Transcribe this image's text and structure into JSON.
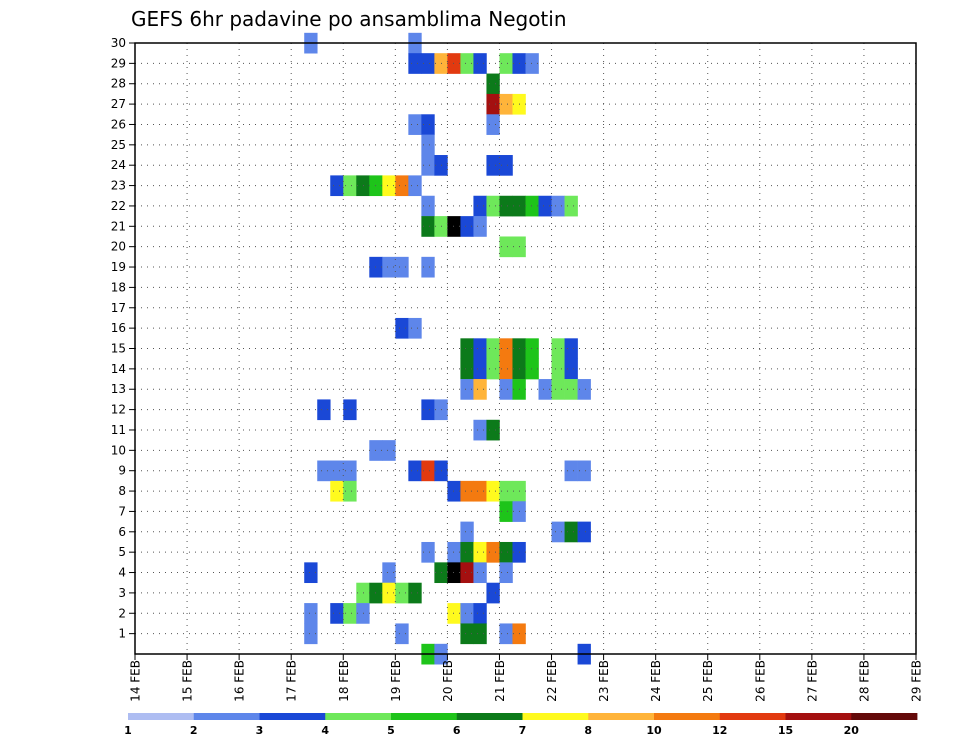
{
  "chart_data": {
    "type": "heatmap",
    "title": "GEFS 6hr padavine po ansamblima Negotin",
    "xlabel": "",
    "ylabel": "",
    "x_tick_labels": [
      "14 FEB",
      "15 FEB",
      "16 FEB",
      "17 FEB",
      "18 FEB",
      "19 FEB",
      "20 FEB",
      "21 FEB",
      "22 FEB",
      "23 FEB",
      "24 FEB",
      "25 FEB",
      "26 FEB",
      "27 FEB",
      "28 FEB",
      "29 FEB"
    ],
    "xlim": [
      0,
      60
    ],
    "y_tick_labels": [
      "1",
      "2",
      "3",
      "4",
      "5",
      "6",
      "7",
      "8",
      "9",
      "10",
      "11",
      "12",
      "13",
      "14",
      "15",
      "16",
      "17",
      "18",
      "19",
      "20",
      "21",
      "22",
      "23",
      "24",
      "25",
      "26",
      "27",
      "28",
      "29",
      "30"
    ],
    "ylim": [
      0,
      30
    ],
    "grid": true,
    "legend": "colorbar-bottom",
    "colorbar": {
      "labels": [
        "1",
        "2",
        "3",
        "4",
        "5",
        "6",
        "7",
        "8",
        "10",
        "12",
        "15",
        "20"
      ],
      "colors": [
        "#aebdf2",
        "#5e86ea",
        "#1a48d6",
        "#6ee85a",
        "#1ec41a",
        "#0c7a1a",
        "#fffa1e",
        "#ffb43a",
        "#f47a10",
        "#e23a10",
        "#a41010",
        "#640a0a"
      ]
    },
    "cells": [
      [
        30,
        13,
        1
      ],
      [
        30,
        21,
        1
      ],
      [
        29,
        21,
        2
      ],
      [
        29,
        22,
        2
      ],
      [
        29,
        23,
        7
      ],
      [
        29,
        24,
        9
      ],
      [
        29,
        25,
        3
      ],
      [
        29,
        26,
        2
      ],
      [
        29,
        28,
        3
      ],
      [
        29,
        29,
        2
      ],
      [
        29,
        30,
        1
      ],
      [
        28,
        27,
        5
      ],
      [
        27,
        27,
        10
      ],
      [
        27,
        28,
        7
      ],
      [
        27,
        29,
        6
      ],
      [
        26,
        21,
        1
      ],
      [
        26,
        22,
        2
      ],
      [
        26,
        27,
        1
      ],
      [
        25,
        22,
        1
      ],
      [
        24,
        22,
        1
      ],
      [
        24,
        23,
        2
      ],
      [
        24,
        27,
        2
      ],
      [
        24,
        28,
        2
      ],
      [
        23,
        15,
        2
      ],
      [
        23,
        16,
        3
      ],
      [
        23,
        17,
        5
      ],
      [
        23,
        18,
        4
      ],
      [
        23,
        19,
        6
      ],
      [
        23,
        20,
        8
      ],
      [
        23,
        21,
        1
      ],
      [
        22,
        22,
        1
      ],
      [
        22,
        26,
        2
      ],
      [
        22,
        27,
        3
      ],
      [
        22,
        28,
        5
      ],
      [
        22,
        29,
        5
      ],
      [
        22,
        30,
        4
      ],
      [
        22,
        31,
        2
      ],
      [
        22,
        32,
        1
      ],
      [
        22,
        33,
        3
      ],
      [
        21,
        22,
        5
      ],
      [
        21,
        23,
        3
      ],
      [
        21,
        24,
        12
      ],
      [
        21,
        25,
        2
      ],
      [
        21,
        26,
        1
      ],
      [
        20,
        28,
        3
      ],
      [
        20,
        29,
        3
      ],
      [
        19,
        18,
        2
      ],
      [
        19,
        19,
        1
      ],
      [
        19,
        20,
        1
      ],
      [
        19,
        22,
        1
      ],
      [
        16,
        20,
        2
      ],
      [
        16,
        21,
        1
      ],
      [
        15,
        25,
        5
      ],
      [
        15,
        26,
        2
      ],
      [
        15,
        27,
        3
      ],
      [
        15,
        28,
        8
      ],
      [
        15,
        29,
        5
      ],
      [
        15,
        30,
        4
      ],
      [
        15,
        32,
        3
      ],
      [
        15,
        33,
        2
      ],
      [
        14,
        25,
        5
      ],
      [
        14,
        26,
        2
      ],
      [
        14,
        27,
        3
      ],
      [
        14,
        28,
        8
      ],
      [
        14,
        29,
        5
      ],
      [
        14,
        30,
        4
      ],
      [
        14,
        32,
        3
      ],
      [
        14,
        33,
        2
      ],
      [
        13,
        25,
        1
      ],
      [
        13,
        26,
        7
      ],
      [
        13,
        28,
        1
      ],
      [
        13,
        29,
        4
      ],
      [
        13,
        31,
        1
      ],
      [
        13,
        32,
        3
      ],
      [
        13,
        33,
        3
      ],
      [
        13,
        34,
        1
      ],
      [
        12,
        14,
        2
      ],
      [
        12,
        16,
        2
      ],
      [
        12,
        22,
        2
      ],
      [
        12,
        23,
        1
      ],
      [
        11,
        26,
        1
      ],
      [
        11,
        27,
        5
      ],
      [
        10,
        18,
        1
      ],
      [
        10,
        19,
        1
      ],
      [
        9,
        14,
        1
      ],
      [
        9,
        15,
        1
      ],
      [
        9,
        16,
        1
      ],
      [
        9,
        21,
        2
      ],
      [
        9,
        22,
        9
      ],
      [
        9,
        23,
        2
      ],
      [
        9,
        33,
        1
      ],
      [
        9,
        34,
        1
      ],
      [
        8,
        15,
        6
      ],
      [
        8,
        16,
        3
      ],
      [
        8,
        24,
        2
      ],
      [
        8,
        25,
        8
      ],
      [
        8,
        26,
        8
      ],
      [
        8,
        27,
        6
      ],
      [
        8,
        28,
        3
      ],
      [
        8,
        29,
        3
      ],
      [
        7,
        28,
        4
      ],
      [
        7,
        29,
        1
      ],
      [
        6,
        25,
        1
      ],
      [
        6,
        32,
        1
      ],
      [
        6,
        33,
        5
      ],
      [
        6,
        34,
        2
      ],
      [
        5,
        22,
        1
      ],
      [
        5,
        24,
        1
      ],
      [
        5,
        25,
        5
      ],
      [
        5,
        26,
        6
      ],
      [
        5,
        27,
        8
      ],
      [
        5,
        28,
        5
      ],
      [
        5,
        29,
        2
      ],
      [
        4,
        13,
        2
      ],
      [
        4,
        19,
        1
      ],
      [
        4,
        23,
        5
      ],
      [
        4,
        24,
        13
      ],
      [
        4,
        25,
        10
      ],
      [
        4,
        26,
        1
      ],
      [
        4,
        28,
        1
      ],
      [
        3,
        17,
        3
      ],
      [
        3,
        18,
        5
      ],
      [
        3,
        19,
        6
      ],
      [
        3,
        20,
        3
      ],
      [
        3,
        21,
        5
      ],
      [
        3,
        27,
        2
      ],
      [
        2,
        13,
        1
      ],
      [
        2,
        15,
        2
      ],
      [
        2,
        16,
        3
      ],
      [
        2,
        17,
        1
      ],
      [
        2,
        24,
        6
      ],
      [
        2,
        25,
        1
      ],
      [
        2,
        26,
        2
      ],
      [
        1,
        13,
        1
      ],
      [
        1,
        20,
        1
      ],
      [
        1,
        25,
        5
      ],
      [
        1,
        26,
        5
      ],
      [
        1,
        28,
        1
      ],
      [
        1,
        29,
        8
      ],
      [
        0,
        22,
        4
      ],
      [
        0,
        23,
        1
      ],
      [
        0,
        34,
        2
      ]
    ]
  }
}
